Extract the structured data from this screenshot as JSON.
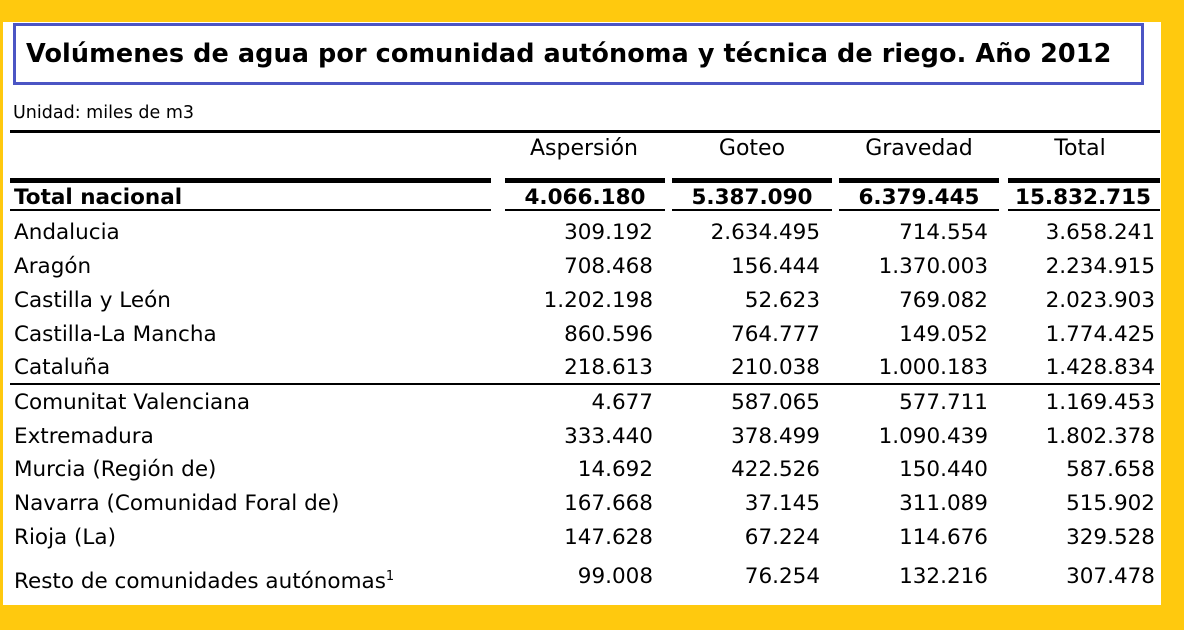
{
  "title": "Volúmenes de agua por comunidad autónoma y técnica de riego. Año 2012",
  "unit": "Unidad: miles de m3",
  "columns": [
    "Aspersión",
    "Goteo",
    "Gravedad",
    "Total"
  ],
  "total_row": {
    "label": "Total nacional",
    "values": [
      "4.066.180",
      "5.387.090",
      "6.379.445",
      "15.832.715"
    ]
  },
  "rows": [
    {
      "label": "Andalucia",
      "values": [
        "309.192",
        "2.634.495",
        "714.554",
        "3.658.241"
      ]
    },
    {
      "label": "Aragón",
      "values": [
        "708.468",
        "156.444",
        "1.370.003",
        "2.234.915"
      ]
    },
    {
      "label": "Castilla y León",
      "values": [
        "1.202.198",
        "52.623",
        "769.082",
        "2.023.903"
      ]
    },
    {
      "label": "Castilla-La Mancha",
      "values": [
        "860.596",
        "764.777",
        "149.052",
        "1.774.425"
      ]
    },
    {
      "label": "Cataluña",
      "values": [
        "218.613",
        "210.038",
        "1.000.183",
        "1.428.834"
      ]
    },
    {
      "label": "Comunitat Valenciana",
      "values": [
        "4.677",
        "587.065",
        "577.711",
        "1.169.453"
      ]
    },
    {
      "label": "Extremadura",
      "values": [
        "333.440",
        "378.499",
        "1.090.439",
        "1.802.378"
      ]
    },
    {
      "label": "Murcia (Región de)",
      "values": [
        "14.692",
        "422.526",
        "150.440",
        "587.658"
      ]
    },
    {
      "label": "Navarra (Comunidad Foral de)",
      "values": [
        "167.668",
        "37.145",
        "311.089",
        "515.902"
      ]
    },
    {
      "label": "Rioja (La)",
      "values": [
        "147.628",
        "67.224",
        "114.676",
        "329.528"
      ]
    },
    {
      "label": "Resto de comunidades autónomas",
      "note": "1",
      "values": [
        "99.008",
        "76.254",
        "132.216",
        "307.478"
      ]
    }
  ]
}
